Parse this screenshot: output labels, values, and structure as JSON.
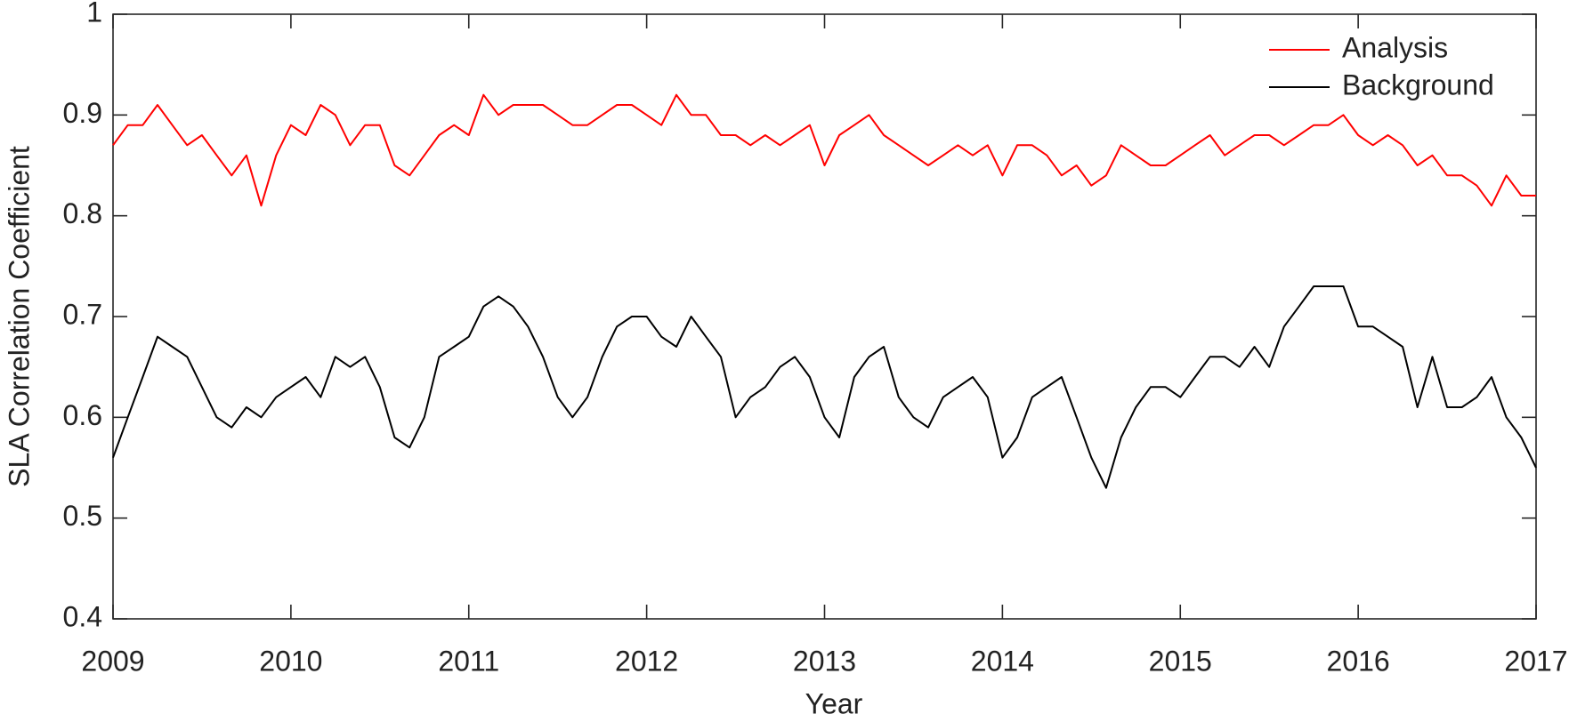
{
  "chart_data": {
    "type": "line",
    "xlabel": "Year",
    "ylabel": "SLA Correlation Coefficient",
    "x": [
      2009,
      2009.083,
      2009.167,
      2009.25,
      2009.333,
      2009.417,
      2009.5,
      2009.583,
      2009.667,
      2009.75,
      2009.833,
      2009.917,
      2010,
      2010.083,
      2010.167,
      2010.25,
      2010.333,
      2010.417,
      2010.5,
      2010.583,
      2010.667,
      2010.75,
      2010.833,
      2010.917,
      2011,
      2011.083,
      2011.167,
      2011.25,
      2011.333,
      2011.417,
      2011.5,
      2011.583,
      2011.667,
      2011.75,
      2011.833,
      2011.917,
      2012,
      2012.083,
      2012.167,
      2012.25,
      2012.333,
      2012.417,
      2012.5,
      2012.583,
      2012.667,
      2012.75,
      2012.833,
      2012.917,
      2013,
      2013.083,
      2013.167,
      2013.25,
      2013.333,
      2013.417,
      2013.5,
      2013.583,
      2013.667,
      2013.75,
      2013.833,
      2013.917,
      2014,
      2014.083,
      2014.167,
      2014.25,
      2014.333,
      2014.417,
      2014.5,
      2014.583,
      2014.667,
      2014.75,
      2014.833,
      2014.917,
      2015,
      2015.083,
      2015.167,
      2015.25,
      2015.333,
      2015.417,
      2015.5,
      2015.583,
      2015.667,
      2015.75,
      2015.833,
      2015.917,
      2016,
      2016.083,
      2016.167,
      2016.25,
      2016.333,
      2016.417,
      2016.5,
      2016.583,
      2016.667,
      2016.75,
      2016.833,
      2016.917,
      2017
    ],
    "series": [
      {
        "name": "Analysis",
        "color": "#ff0000",
        "values": [
          0.87,
          0.89,
          0.89,
          0.91,
          0.89,
          0.87,
          0.88,
          0.86,
          0.84,
          0.86,
          0.81,
          0.86,
          0.89,
          0.88,
          0.91,
          0.9,
          0.87,
          0.89,
          0.89,
          0.85,
          0.84,
          0.86,
          0.88,
          0.89,
          0.88,
          0.92,
          0.9,
          0.91,
          0.91,
          0.91,
          0.9,
          0.89,
          0.89,
          0.9,
          0.91,
          0.91,
          0.9,
          0.89,
          0.92,
          0.9,
          0.9,
          0.88,
          0.88,
          0.87,
          0.88,
          0.87,
          0.88,
          0.89,
          0.85,
          0.88,
          0.89,
          0.9,
          0.88,
          0.87,
          0.86,
          0.85,
          0.86,
          0.87,
          0.86,
          0.87,
          0.84,
          0.87,
          0.87,
          0.86,
          0.84,
          0.85,
          0.83,
          0.84,
          0.87,
          0.86,
          0.85,
          0.85,
          0.86,
          0.87,
          0.88,
          0.86,
          0.87,
          0.88,
          0.88,
          0.87,
          0.88,
          0.89,
          0.89,
          0.9,
          0.88,
          0.87,
          0.88,
          0.87,
          0.85,
          0.86,
          0.84,
          0.84,
          0.83,
          0.81,
          0.84,
          0.82,
          0.82
        ]
      },
      {
        "name": "Background",
        "color": "#000000",
        "values": [
          0.56,
          0.6,
          0.64,
          0.68,
          0.67,
          0.66,
          0.63,
          0.6,
          0.59,
          0.61,
          0.6,
          0.62,
          0.63,
          0.64,
          0.62,
          0.66,
          0.65,
          0.66,
          0.63,
          0.58,
          0.57,
          0.6,
          0.66,
          0.67,
          0.68,
          0.71,
          0.72,
          0.71,
          0.69,
          0.66,
          0.62,
          0.6,
          0.62,
          0.66,
          0.69,
          0.7,
          0.7,
          0.68,
          0.67,
          0.7,
          0.68,
          0.66,
          0.6,
          0.62,
          0.63,
          0.65,
          0.66,
          0.64,
          0.6,
          0.58,
          0.64,
          0.66,
          0.67,
          0.62,
          0.6,
          0.59,
          0.62,
          0.63,
          0.64,
          0.62,
          0.56,
          0.58,
          0.62,
          0.63,
          0.64,
          0.6,
          0.56,
          0.53,
          0.58,
          0.61,
          0.63,
          0.63,
          0.62,
          0.64,
          0.66,
          0.66,
          0.65,
          0.67,
          0.65,
          0.69,
          0.71,
          0.73,
          0.73,
          0.73,
          0.69,
          0.69,
          0.68,
          0.67,
          0.61,
          0.66,
          0.61,
          0.61,
          0.62,
          0.64,
          0.6,
          0.58,
          0.55
        ]
      }
    ],
    "xlim": [
      2009,
      2017
    ],
    "xticks": [
      2009,
      2010,
      2011,
      2012,
      2013,
      2014,
      2015,
      2016,
      2017
    ],
    "ylim": [
      0.4,
      1
    ],
    "yticks": [
      0.4,
      0.5,
      0.6,
      0.7,
      0.8,
      0.9,
      1
    ],
    "legend": "upper right",
    "grid": false
  }
}
